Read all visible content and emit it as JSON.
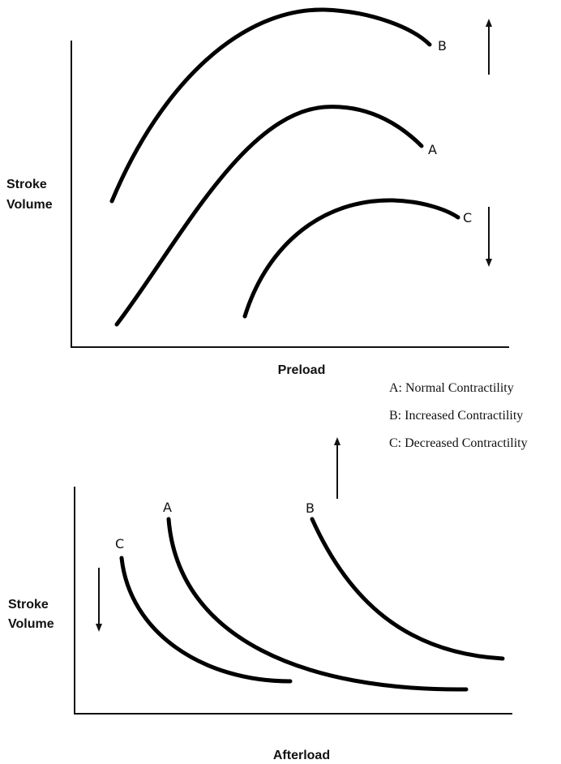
{
  "panels": [
    {
      "y_label": [
        "Stroke",
        "Volume"
      ],
      "x_label": "Preload",
      "curves": [
        {
          "label": "B"
        },
        {
          "label": "A"
        },
        {
          "label": "C"
        }
      ]
    },
    {
      "y_label": [
        "Stroke",
        "Volume"
      ],
      "x_label": "Afterload",
      "curves": [
        {
          "label": "A"
        },
        {
          "label": "B"
        },
        {
          "label": "C"
        }
      ]
    }
  ],
  "legend": [
    "A: Normal Contractility",
    "B: Increased Contractility",
    "C: Decreased Contractility"
  ]
}
